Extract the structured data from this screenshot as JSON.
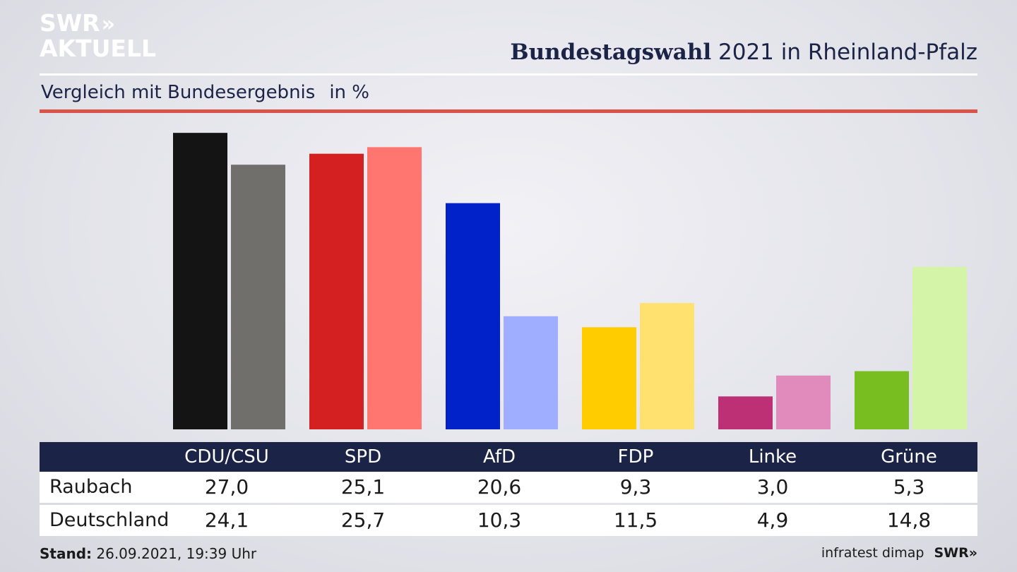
{
  "header": {
    "logo_line1": "SWR",
    "logo_arrows": "»",
    "logo_line2": "AKTUELL",
    "title_bold": "Bundestagswahl",
    "title_rest": " 2021 in Rheinland-Pfalz",
    "subtitle": "Vergleich mit Bundesergebnis",
    "subtitle_unit": "in %"
  },
  "chart_data": {
    "type": "bar",
    "categories": [
      "CDU/CSU",
      "SPD",
      "AfD",
      "FDP",
      "Linke",
      "Grüne"
    ],
    "series": [
      {
        "name": "Raubach",
        "values": [
          27.0,
          25.1,
          20.6,
          9.3,
          3.0,
          5.3
        ]
      },
      {
        "name": "Deutschland",
        "values": [
          24.1,
          25.7,
          10.3,
          11.5,
          4.9,
          14.8
        ]
      }
    ],
    "labels": [
      [
        "27,0",
        "25,1",
        "20,6",
        "9,3",
        "3,0",
        "5,3"
      ],
      [
        "24,1",
        "25,7",
        "10,3",
        "11,5",
        "4,9",
        "14,8"
      ]
    ],
    "colors": [
      [
        "#141414",
        "#d42020",
        "#0022c8",
        "#ffcc00",
        "#be3075",
        "#78be20"
      ],
      [
        "#706f6c",
        "#ff7670",
        "#a0aeff",
        "#ffe170",
        "#e08bbb",
        "#d4f5a8"
      ]
    ],
    "title": "Bundestagswahl 2021 in Rheinland-Pfalz",
    "ylabel": "in %",
    "grid": false,
    "legend": "table-below"
  },
  "footer": {
    "stand_label": "Stand:",
    "stand_value": " 26.09.2021, 19:39 Uhr",
    "source": "infratest dimap",
    "brand": "SWR»"
  }
}
